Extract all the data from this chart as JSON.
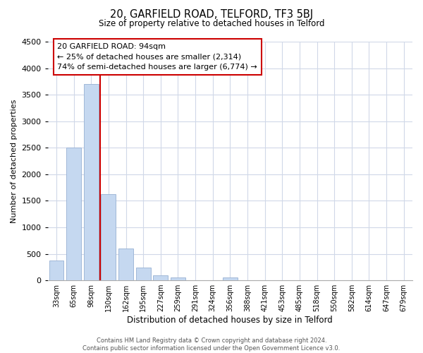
{
  "title": "20, GARFIELD ROAD, TELFORD, TF3 5BJ",
  "subtitle": "Size of property relative to detached houses in Telford",
  "xlabel": "Distribution of detached houses by size in Telford",
  "ylabel": "Number of detached properties",
  "footer_line1": "Contains HM Land Registry data © Crown copyright and database right 2024.",
  "footer_line2": "Contains public sector information licensed under the Open Government Licence v3.0.",
  "categories": [
    "33sqm",
    "65sqm",
    "98sqm",
    "130sqm",
    "162sqm",
    "195sqm",
    "227sqm",
    "259sqm",
    "291sqm",
    "324sqm",
    "356sqm",
    "388sqm",
    "421sqm",
    "453sqm",
    "485sqm",
    "518sqm",
    "550sqm",
    "582sqm",
    "614sqm",
    "647sqm",
    "679sqm"
  ],
  "values": [
    380,
    2510,
    3700,
    1630,
    600,
    240,
    90,
    50,
    0,
    0,
    50,
    0,
    0,
    0,
    0,
    0,
    0,
    0,
    0,
    0,
    0
  ],
  "bar_color": "#c5d8f0",
  "bar_edge_color": "#a0b8d8",
  "ylim": [
    0,
    4500
  ],
  "yticks": [
    0,
    500,
    1000,
    1500,
    2000,
    2500,
    3000,
    3500,
    4000,
    4500
  ],
  "property_line_color": "#cc0000",
  "annotation_text_line1": "20 GARFIELD ROAD: 94sqm",
  "annotation_text_line2": "← 25% of detached houses are smaller (2,314)",
  "annotation_text_line3": "74% of semi-detached houses are larger (6,774) →",
  "annotation_box_color": "#cc0000",
  "bg_color": "#ffffff",
  "grid_color": "#d0d8e8"
}
